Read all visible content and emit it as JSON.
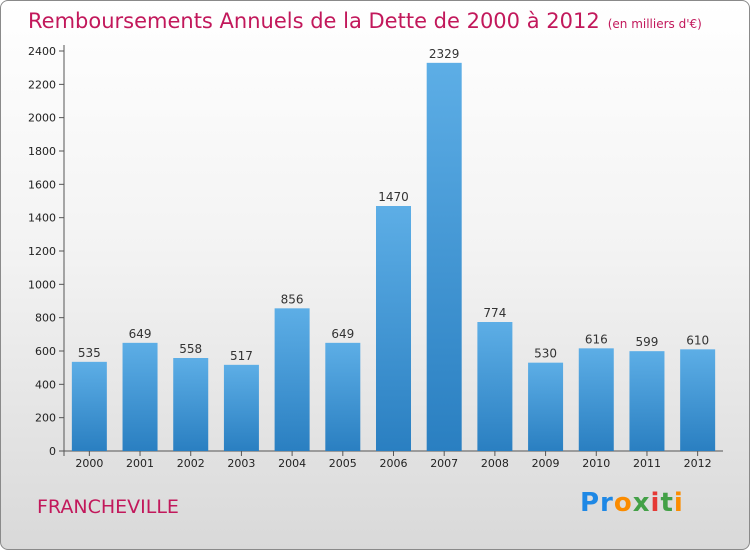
{
  "title": "Remboursements Annuels de la Dette de 2000 à 2012",
  "unit": "(en milliers d'€)",
  "city": "FRANCHEVILLE",
  "brand": "Proxiti",
  "colors": {
    "title": "#c2185b",
    "bar_top": "#5daee6",
    "bar_bottom": "#2a7fc1"
  },
  "chart_data": {
    "type": "bar",
    "title": "Remboursements Annuels de la Dette de 2000 à 2012",
    "subtitle": "(en milliers d'€)",
    "xlabel": "",
    "ylabel": "",
    "categories": [
      "2000",
      "2001",
      "2002",
      "2003",
      "2004",
      "2005",
      "2006",
      "2007",
      "2008",
      "2009",
      "2010",
      "2011",
      "2012"
    ],
    "values": [
      535,
      649,
      558,
      517,
      856,
      649,
      1470,
      2329,
      774,
      530,
      616,
      599,
      610
    ],
    "ylim": [
      0,
      2400
    ],
    "yticks": [
      0,
      200,
      400,
      600,
      800,
      1000,
      1200,
      1400,
      1600,
      1800,
      2000,
      2200,
      2400
    ],
    "grid": false,
    "legend": "none"
  }
}
